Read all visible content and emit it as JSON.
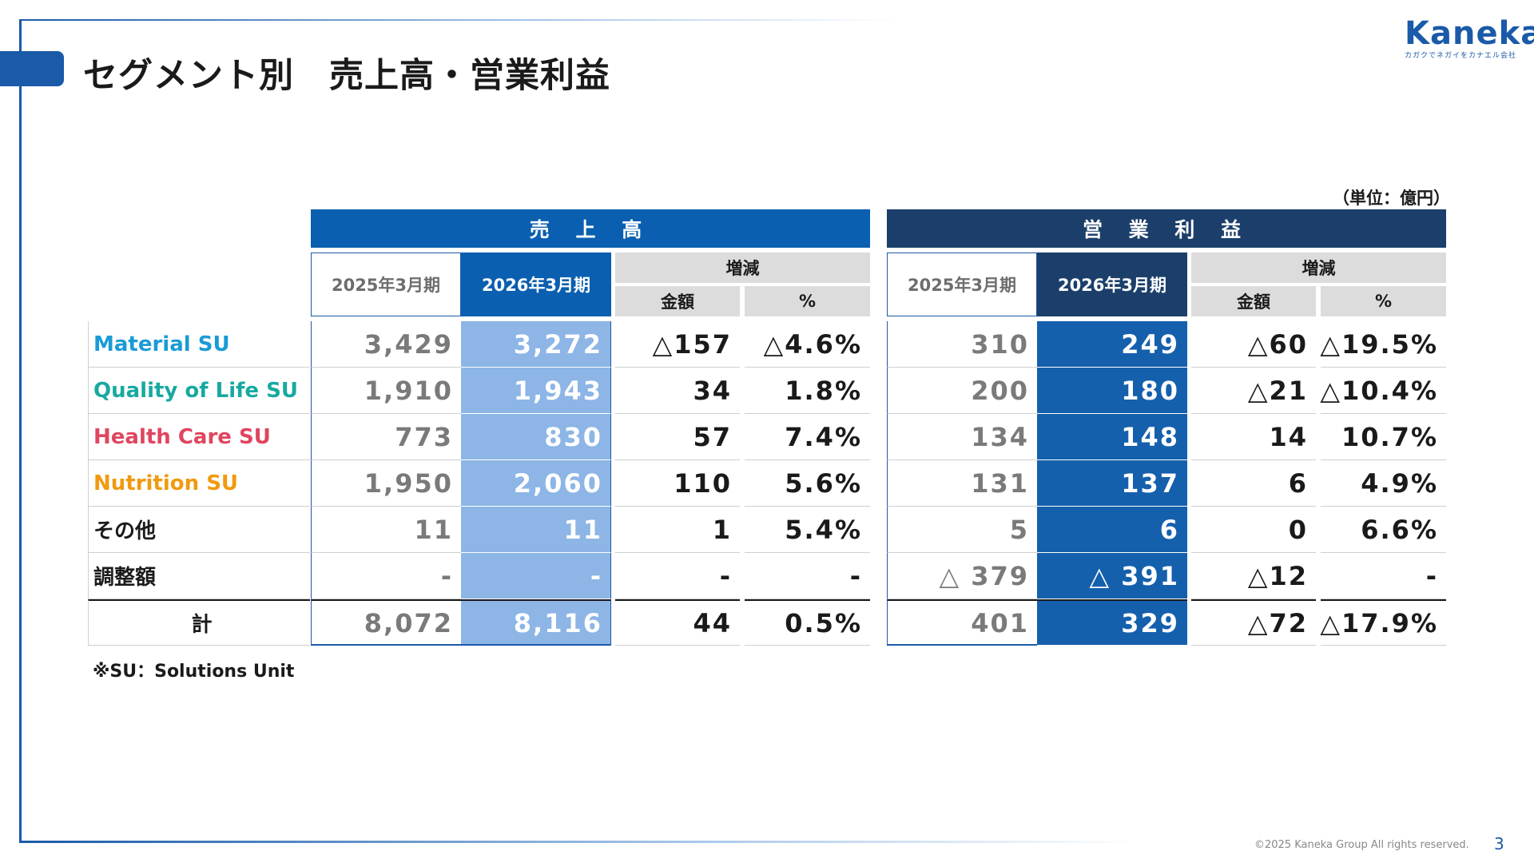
{
  "title": "セグメント別　売上高・営業利益",
  "logo": {
    "name": "Kaneka",
    "tagline": "カガクでネガイをカナエル会社"
  },
  "unit_note": "（単位：億円）",
  "sales": {
    "header": "売 上 高",
    "prev_label": "2025年3月期",
    "cur_label": "2026年3月期",
    "change_label": "増減",
    "amount_label": "金額",
    "pct_label": "%"
  },
  "op_profit": {
    "header": "営 業 利 益",
    "prev_label": "2025年3月期",
    "cur_label": "2026年3月期",
    "change_label": "増減",
    "amount_label": "金額",
    "pct_label": "%"
  },
  "rows": [
    {
      "label": "Material SU",
      "color": "#1a9bd7",
      "s_prev": "3,429",
      "s_cur": "3,272",
      "s_chg": "△157",
      "s_pct": "△4.6%",
      "o_prev": "310",
      "o_cur": "249",
      "o_chg": "△60",
      "o_pct": "△19.5%"
    },
    {
      "label": "Quality of Life SU",
      "color": "#17a9a0",
      "s_prev": "1,910",
      "s_cur": "1,943",
      "s_chg": "34",
      "s_pct": "1.8%",
      "o_prev": "200",
      "o_cur": "180",
      "o_chg": "△21",
      "o_pct": "△10.4%"
    },
    {
      "label": "Health Care SU",
      "color": "#e0455f",
      "s_prev": "773",
      "s_cur": "830",
      "s_chg": "57",
      "s_pct": "7.4%",
      "o_prev": "134",
      "o_cur": "148",
      "o_chg": "14",
      "o_pct": "10.7%"
    },
    {
      "label": "Nutrition SU",
      "color": "#f09a10",
      "s_prev": "1,950",
      "s_cur": "2,060",
      "s_chg": "110",
      "s_pct": "5.6%",
      "o_prev": "131",
      "o_cur": "137",
      "o_chg": "6",
      "o_pct": "4.9%"
    },
    {
      "label": "その他",
      "color": "#1a1a1a",
      "s_prev": "11",
      "s_cur": "11",
      "s_chg": "1",
      "s_pct": "5.4%",
      "o_prev": "5",
      "o_cur": "6",
      "o_chg": "0",
      "o_pct": "6.6%"
    },
    {
      "label": "調整額",
      "color": "#1a1a1a",
      "s_prev": "-",
      "s_cur": "-",
      "s_chg": "-",
      "s_pct": "-",
      "o_prev": "△ 379",
      "o_cur": "△ 391",
      "o_chg": "△12",
      "o_pct": "-"
    }
  ],
  "total": {
    "label": "計",
    "s_prev": "8,072",
    "s_cur": "8,116",
    "s_chg": "44",
    "s_pct": "0.5%",
    "o_prev": "401",
    "o_cur": "329",
    "o_chg": "△72",
    "o_pct": "△17.9%"
  },
  "footnote": "※SU：Solutions Unit",
  "copyright": "©2025 Kaneka Group All rights reserved.",
  "page_number": "3",
  "colors": {
    "brand_blue": "#1a5aa8",
    "sales_header": "#0a5fb0",
    "op_header": "#1b3f6a",
    "sales_cur": "#8db5e6",
    "op_cur": "#1560ad"
  }
}
